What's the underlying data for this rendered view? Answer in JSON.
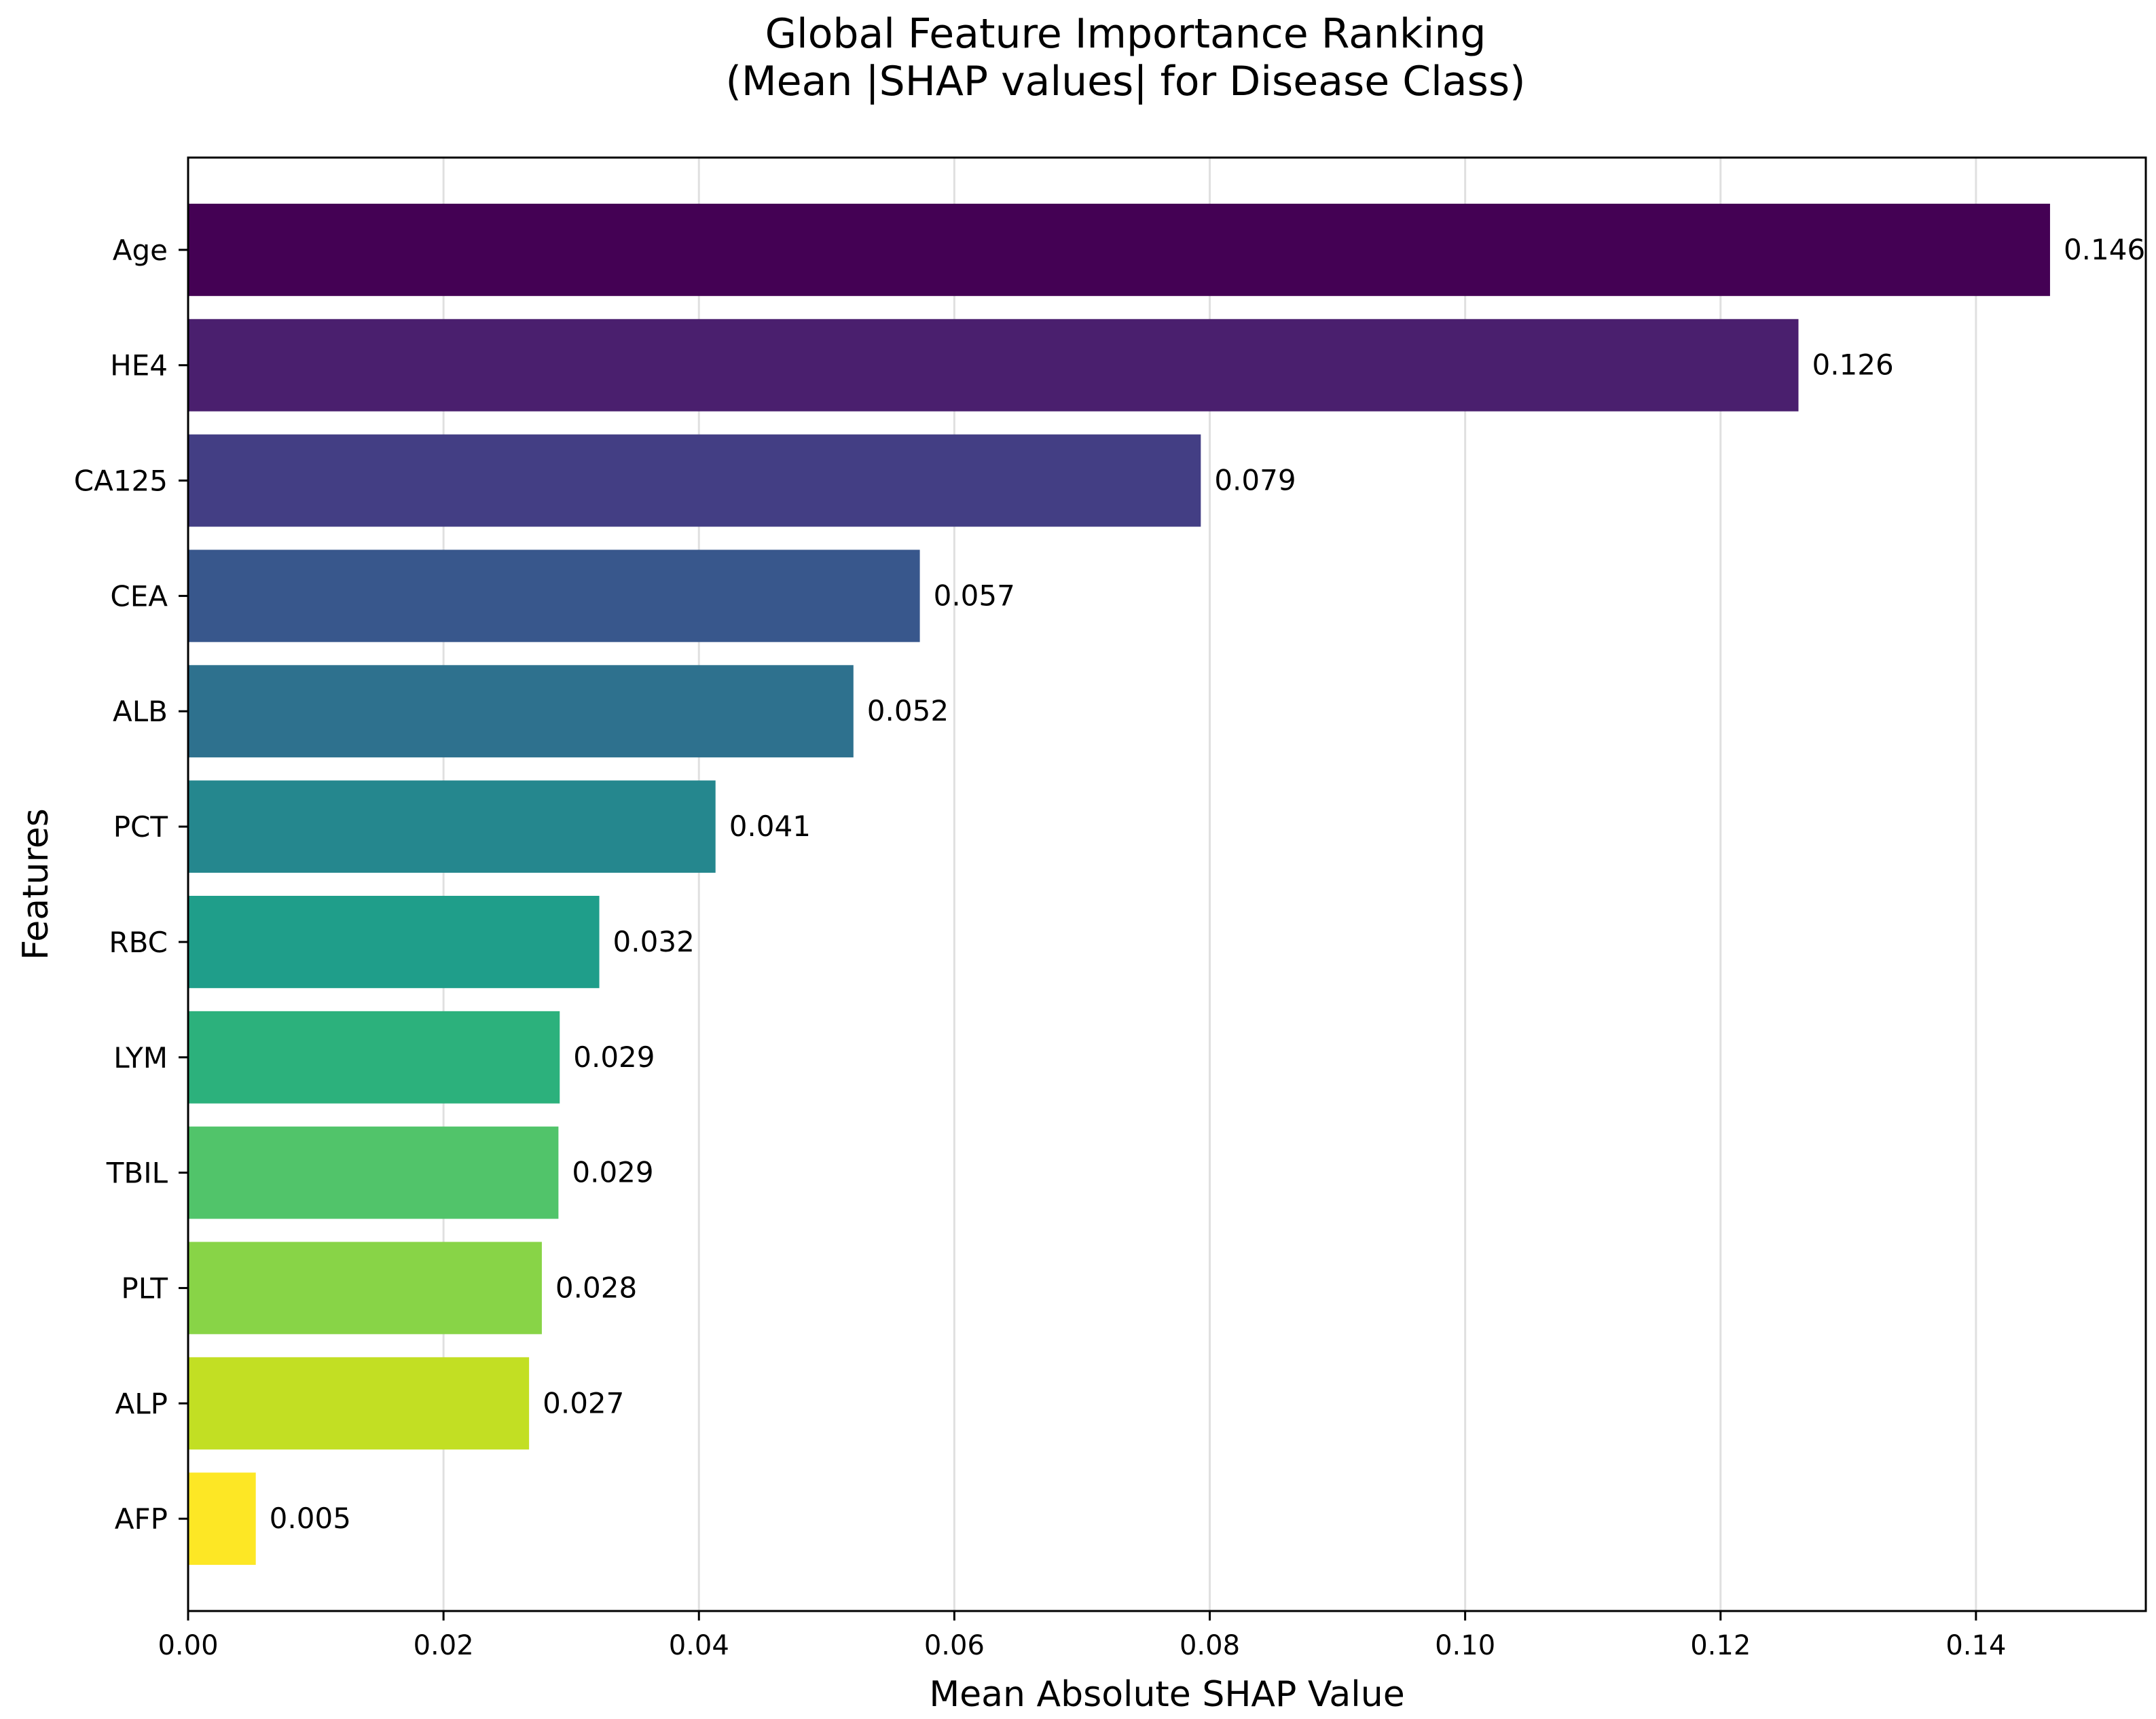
{
  "chart_data": {
    "type": "bar",
    "orientation": "horizontal",
    "title": [
      "Global Feature Importance Ranking",
      "(Mean |SHAP values| for Disease Class)"
    ],
    "xlabel": "Mean Absolute SHAP Value",
    "ylabel": "Features",
    "xlim": [
      0,
      0.1533
    ],
    "xticks": [
      "0.00",
      "0.02",
      "0.04",
      "0.06",
      "0.08",
      "0.10",
      "0.12",
      "0.14"
    ],
    "grid": "vertical",
    "legend": "none",
    "categories": [
      "Age",
      "HE4",
      "CA125",
      "CEA",
      "ALB",
      "PCT",
      "RBC",
      "LYM",
      "TBIL",
      "PLT",
      "ALP",
      "AFP"
    ],
    "values": [
      0.1458,
      0.1261,
      0.0793,
      0.0573,
      0.0521,
      0.0413,
      0.0322,
      0.0291,
      0.029,
      0.0277,
      0.0267,
      0.0053
    ],
    "data_labels": [
      "0.146",
      "0.126",
      "0.079",
      "0.057",
      "0.052",
      "0.041",
      "0.032",
      "0.029",
      "0.029",
      "0.028",
      "0.027",
      "0.005"
    ],
    "colors": [
      "#440154",
      "#4a1f6e",
      "#433e84",
      "#38578c",
      "#2e718e",
      "#25878e",
      "#1f9e8a",
      "#2cb17c",
      "#51c46a",
      "#88d447",
      "#c2df23",
      "#fde725"
    ]
  }
}
